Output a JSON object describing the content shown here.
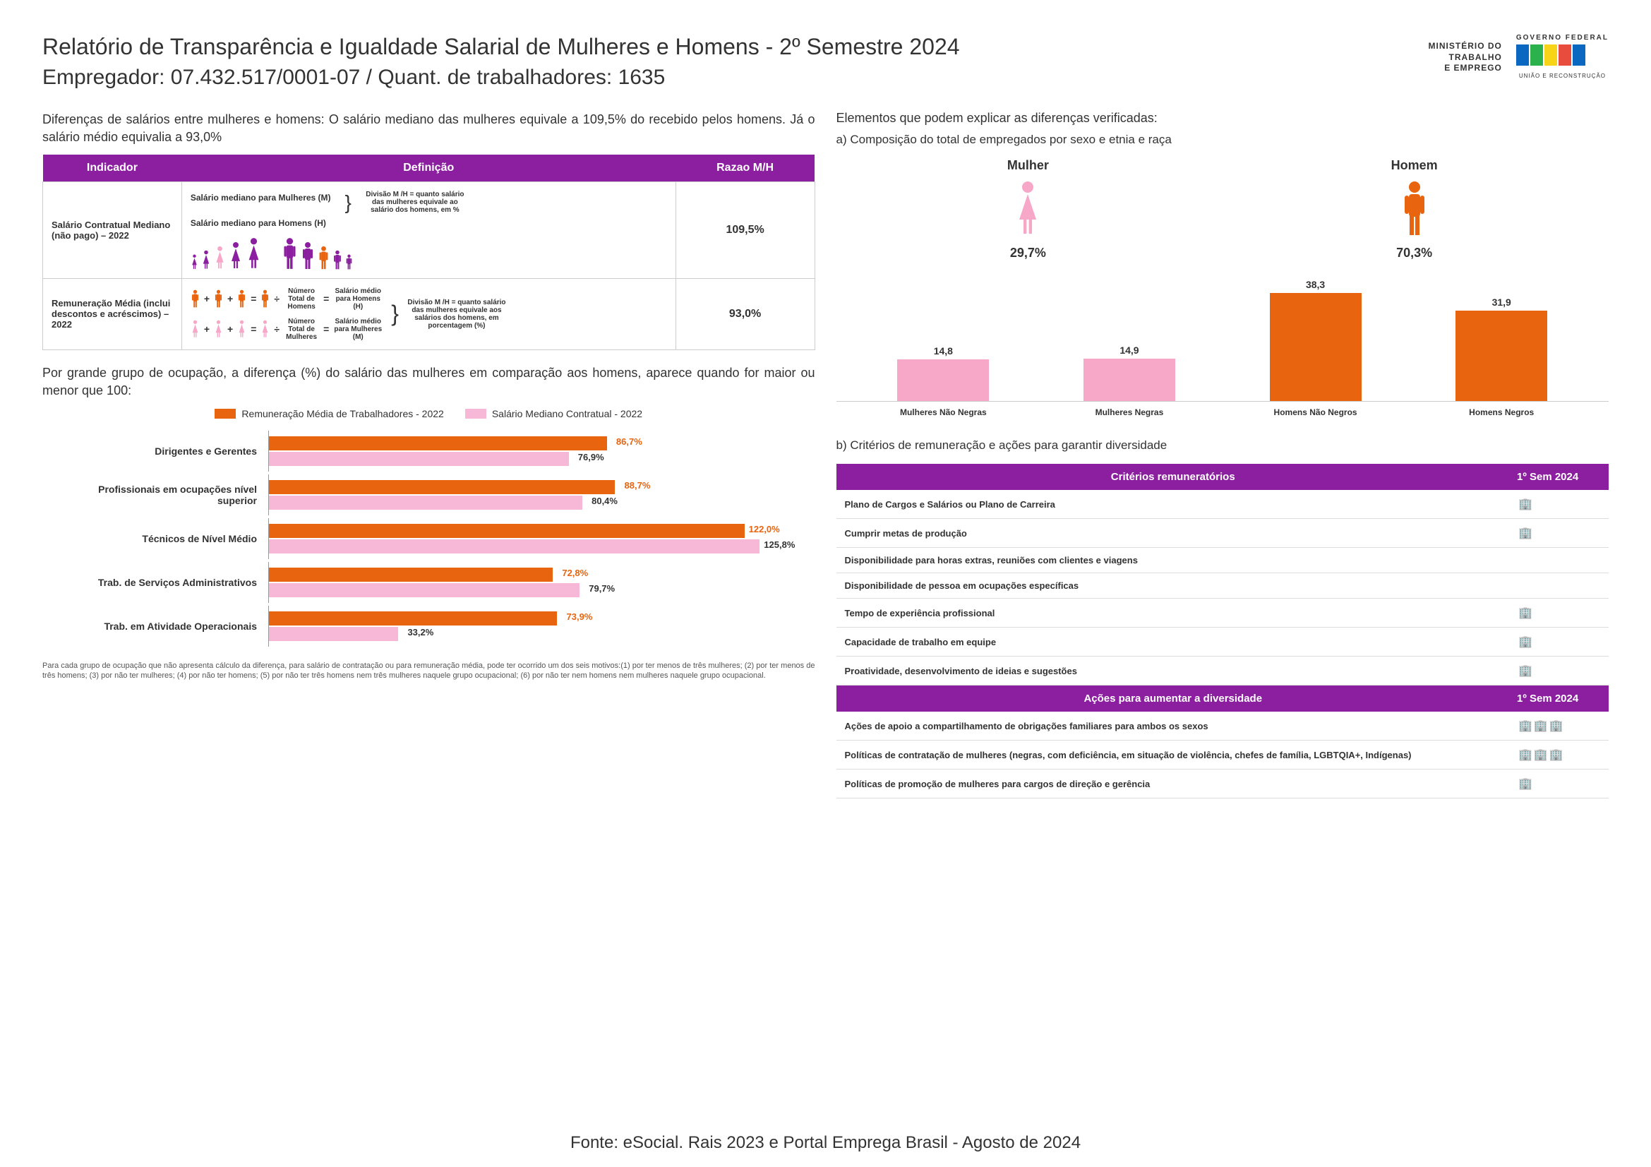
{
  "header": {
    "title": "Relatório de Transparência e Igualdade Salarial de Mulheres e Homens - 2º Semestre 2024",
    "subtitle": "Empregador: 07.432.517/0001-07    /    Quant. de trabalhadores: 1635",
    "ministerio_l1": "MINISTÉRIO DO",
    "ministerio_l2": "TRABALHO",
    "ministerio_l3": "E EMPREGO",
    "gov_top": "GOVERNO FEDERAL",
    "gov_sub": "UNIÃO E RECONSTRUÇÃO",
    "flag_colors": [
      "#0b68c1",
      "#2bb24c",
      "#f7d417",
      "#e84c3d",
      "#0b68c1"
    ]
  },
  "left": {
    "intro": "Diferenças de salários entre mulheres e homens: O salário mediano das mulheres equivale a 109,5% do recebido pelos homens. Já o salário médio equivalia a 93,0%",
    "table": {
      "col1": "Indicador",
      "col2": "Definição",
      "col3": "Razao M/H",
      "row1": {
        "indicator": "Salário Contratual Mediano (não pago) – 2022",
        "label_m": "Salário mediano para Mulheres (M)",
        "label_h": "Salário mediano para Homens (H)",
        "note": "Divisão M /H = quanto salário das mulheres equivale ao salário dos homens, em %",
        "ratio": "109,5%"
      },
      "row2": {
        "indicator": "Remuneração Média (inclui descontos e acréscimos) – 2022",
        "n_homens": "Número Total de Homens",
        "s_homens": "Salário médio para Homens (H)",
        "n_mulheres": "Número Total de Mulheres",
        "s_mulheres": "Salário médio para Mulheres (M)",
        "note": "Divisão M /H = quanto salário das mulheres equivale aos salários dos homens, em porcentagem (%)",
        "ratio": "93,0%"
      }
    },
    "occ_intro": "Por grande grupo de ocupação, a diferença (%) do salário das mulheres em comparação aos homens, aparece quando for maior ou menor que 100:",
    "occ_legend": {
      "a": "Remuneração Média de Trabalhadores - 2022",
      "b": "Salário Mediano Contratual - 2022",
      "color_a": "#e8640f",
      "color_b": "#f7b8d8"
    },
    "occ_chart": {
      "max": 140,
      "rows": [
        {
          "label": "Dirigentes e Gerentes",
          "a": 86.7,
          "a_txt": "86,7%",
          "b": 76.9,
          "b_txt": "76,9%"
        },
        {
          "label": "Profissionais em ocupações nível superior",
          "a": 88.7,
          "a_txt": "88,7%",
          "b": 80.4,
          "b_txt": "80,4%"
        },
        {
          "label": "Técnicos de Nível Médio",
          "a": 122.0,
          "a_txt": "122,0%",
          "b": 125.8,
          "b_txt": "125,8%"
        },
        {
          "label": "Trab. de Serviços Administrativos",
          "a": 72.8,
          "a_txt": "72,8%",
          "b": 79.7,
          "b_txt": "79,7%"
        },
        {
          "label": "Trab. em Atividade Operacionais",
          "a": 73.9,
          "a_txt": "73,9%",
          "b": 33.2,
          "b_txt": "33,2%"
        }
      ]
    },
    "footnote": "Para cada grupo de ocupação que não apresenta cálculo da diferença, para salário de contratação ou para remuneração média, pode ter ocorrido um dos seis motivos:(1) por ter menos de três mulheres; (2) por ter menos de três homens; (3) por não ter mulheres; (4) por não ter homens; (5) por não ter três homens nem três mulheres naquele grupo ocupacional; (6) por não ter nem homens nem mulheres naquele grupo ocupacional."
  },
  "right": {
    "heading": "Elementos que podem explicar as diferenças verificadas:",
    "sub_a": "a) Composição do total de empregados por sexo e etnia e raça",
    "gender": {
      "mulher_label": "Mulher",
      "mulher_pct": "29,7%",
      "mulher_color": "#f7a8c9",
      "homem_label": "Homem",
      "homem_pct": "70,3%",
      "homem_color": "#e8640f"
    },
    "ethnicity": {
      "max": 40,
      "bars": [
        {
          "label": "Mulheres Não Negras",
          "val": 14.8,
          "txt": "14,8",
          "color": "#f7a8c9"
        },
        {
          "label": "Mulheres Negras",
          "val": 14.9,
          "txt": "14,9",
          "color": "#f7a8c9"
        },
        {
          "label": "Homens Não Negros",
          "val": 38.3,
          "txt": "38,3",
          "color": "#e8640f"
        },
        {
          "label": "Homens Negros",
          "val": 31.9,
          "txt": "31,9",
          "color": "#e8640f"
        }
      ]
    },
    "sub_b": "b) Critérios de remuneração e ações para garantir diversidade",
    "criteria": {
      "header1": "Critérios remuneratórios",
      "header2": "1º Sem 2024",
      "rows": [
        {
          "label": "Plano de Cargos e Salários ou Plano de Carreira",
          "icons": 1
        },
        {
          "label": "Cumprir metas de produção",
          "icons": 1
        },
        {
          "label": "Disponibilidade para horas extras, reuniões com clientes e viagens",
          "icons": 0
        },
        {
          "label": "Disponibilidade de pessoa em ocupações específicas",
          "icons": 0
        },
        {
          "label": "Tempo de experiência profissional",
          "icons": 1
        },
        {
          "label": "Capacidade de trabalho em equipe",
          "icons": 1
        },
        {
          "label": "Proatividade, desenvolvimento de ideias e sugestões",
          "icons": 1
        }
      ]
    },
    "actions": {
      "header1": "Ações para aumentar a diversidade",
      "header2": "1º Sem 2024",
      "rows": [
        {
          "label": "Ações de apoio a compartilhamento de obrigações familiares para ambos os sexos",
          "icons": 3
        },
        {
          "label": "Políticas de contratação de mulheres (negras, com deficiência, em situação de violência, chefes de família, LGBTQIA+, Indígenas)",
          "icons": 3
        },
        {
          "label": "Políticas de promoção de mulheres para cargos de direção e gerência",
          "icons": 1
        }
      ]
    }
  },
  "footer": "Fonte: eSocial. Rais 2023 e Portal Emprega Brasil - Agosto de 2024",
  "colors": {
    "purple": "#8b1fa0",
    "orange": "#e8640f",
    "pink": "#f7a8c9",
    "pink_bar": "#f7b8d8"
  }
}
